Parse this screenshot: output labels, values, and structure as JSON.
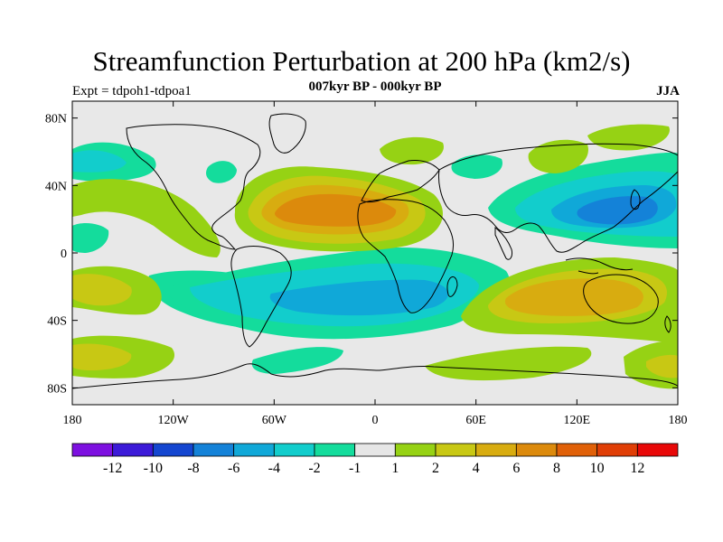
{
  "header": {
    "title": "Streamfunction Perturbation at 200 hPa (km2/s)",
    "subtitle": "007kyr BP - 000kyr BP",
    "experiment": "Expt = tdpoh1-tdpoa1",
    "season": "JJA"
  },
  "map": {
    "projection": "cylindrical-equidistant",
    "lon_range": [
      -180,
      180
    ],
    "lat_range": [
      -90,
      90
    ],
    "background_color": "#e8e8e8",
    "x_ticks": [
      {
        "value": -180,
        "label": "180"
      },
      {
        "value": -120,
        "label": "120W"
      },
      {
        "value": -60,
        "label": "60W"
      },
      {
        "value": 0,
        "label": "0"
      },
      {
        "value": 60,
        "label": "60E"
      },
      {
        "value": 120,
        "label": "120E"
      },
      {
        "value": 180,
        "label": "180"
      }
    ],
    "y_ticks": [
      {
        "value": 80,
        "label": "80N"
      },
      {
        "value": 40,
        "label": "40N"
      },
      {
        "value": 0,
        "label": "0"
      },
      {
        "value": -40,
        "label": "40S"
      },
      {
        "value": -80,
        "label": "80S"
      }
    ]
  },
  "colorbar": {
    "colors": [
      "#7d10e0",
      "#3c1ad8",
      "#1446d0",
      "#1482d8",
      "#10a8d8",
      "#12cdcc",
      "#14dc9c",
      "#e6e6e6",
      "#96d214",
      "#c8c814",
      "#d8ac10",
      "#dc8a0c",
      "#e06008",
      "#e03e06",
      "#e80808"
    ],
    "labels": [
      "-12",
      "-10",
      "-8",
      "-6",
      "-4",
      "-2",
      "-1",
      "1",
      "2",
      "4",
      "6",
      "8",
      "10",
      "12"
    ]
  }
}
